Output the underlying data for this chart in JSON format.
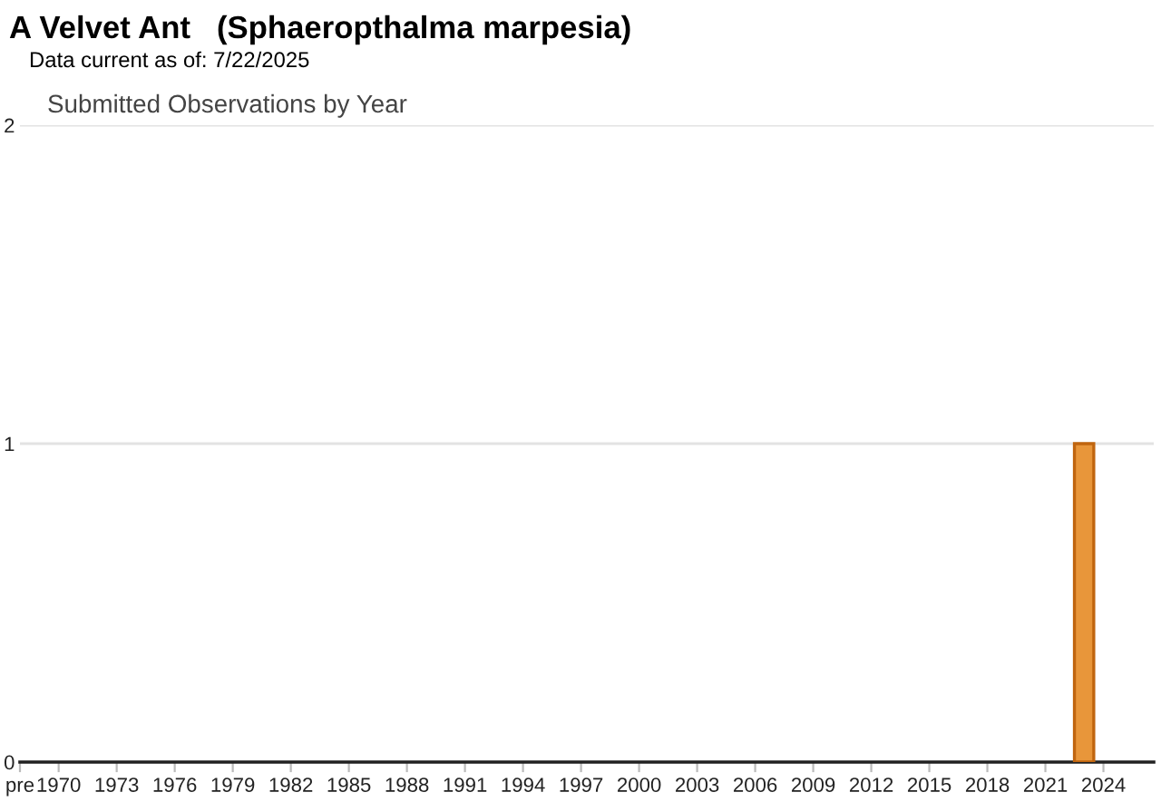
{
  "chart_data": {
    "type": "bar",
    "title": "A Velvet Ant   (Sphaeropthalma marpesia)",
    "subtitle": "Data current as of: 7/22/2025",
    "annotations": [
      "Submitted Observations by Year"
    ],
    "x": [
      2023
    ],
    "values": [
      1
    ],
    "color": "#e8963a",
    "xlim": [
      1968,
      2026.6
    ],
    "xticks": [
      {
        "value": 1968,
        "label": "pre"
      },
      1970,
      1973,
      1976,
      1979,
      1982,
      1985,
      1988,
      1991,
      1994,
      1997,
      2000,
      2003,
      2006,
      2009,
      2012,
      2015,
      2018,
      2021,
      2024
    ],
    "ylim": [
      0,
      2
    ],
    "yticks": [
      0,
      1,
      2
    ],
    "grid": "y"
  }
}
